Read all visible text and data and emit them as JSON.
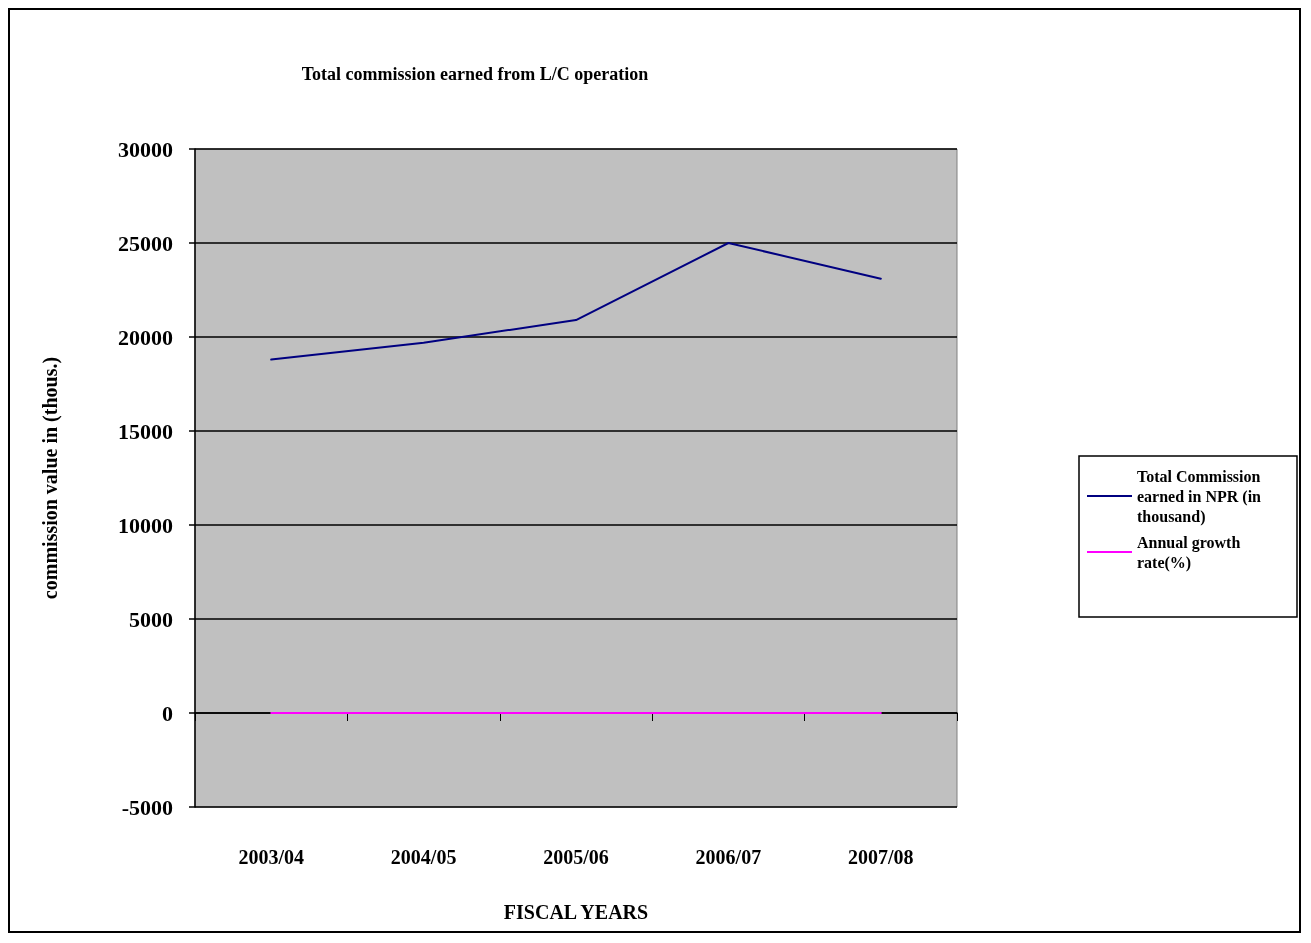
{
  "chart_data": {
    "type": "line",
    "title": "Total commission earned from L/C operation",
    "xlabel": "FISCAL YEARS",
    "ylabel": "commission value in (thous.)",
    "categories": [
      "2003/04",
      "2004/05",
      "2005/06",
      "2006/07",
      "2007/08"
    ],
    "series": [
      {
        "name": "Total Commission earned in NPR (in thousand)",
        "color": "#000080",
        "values": [
          18800,
          19700,
          20900,
          25000,
          23100
        ]
      },
      {
        "name": "Annual growth rate(%)",
        "color": "#ff00ff",
        "values": [
          0,
          0,
          0,
          0,
          0
        ]
      }
    ],
    "ylim": [
      -5000,
      30000
    ],
    "yticks": [
      -5000,
      0,
      5000,
      10000,
      15000,
      20000,
      25000,
      30000
    ],
    "grid": "y",
    "legend": "right",
    "marker": "none",
    "line_style": "solid"
  }
}
